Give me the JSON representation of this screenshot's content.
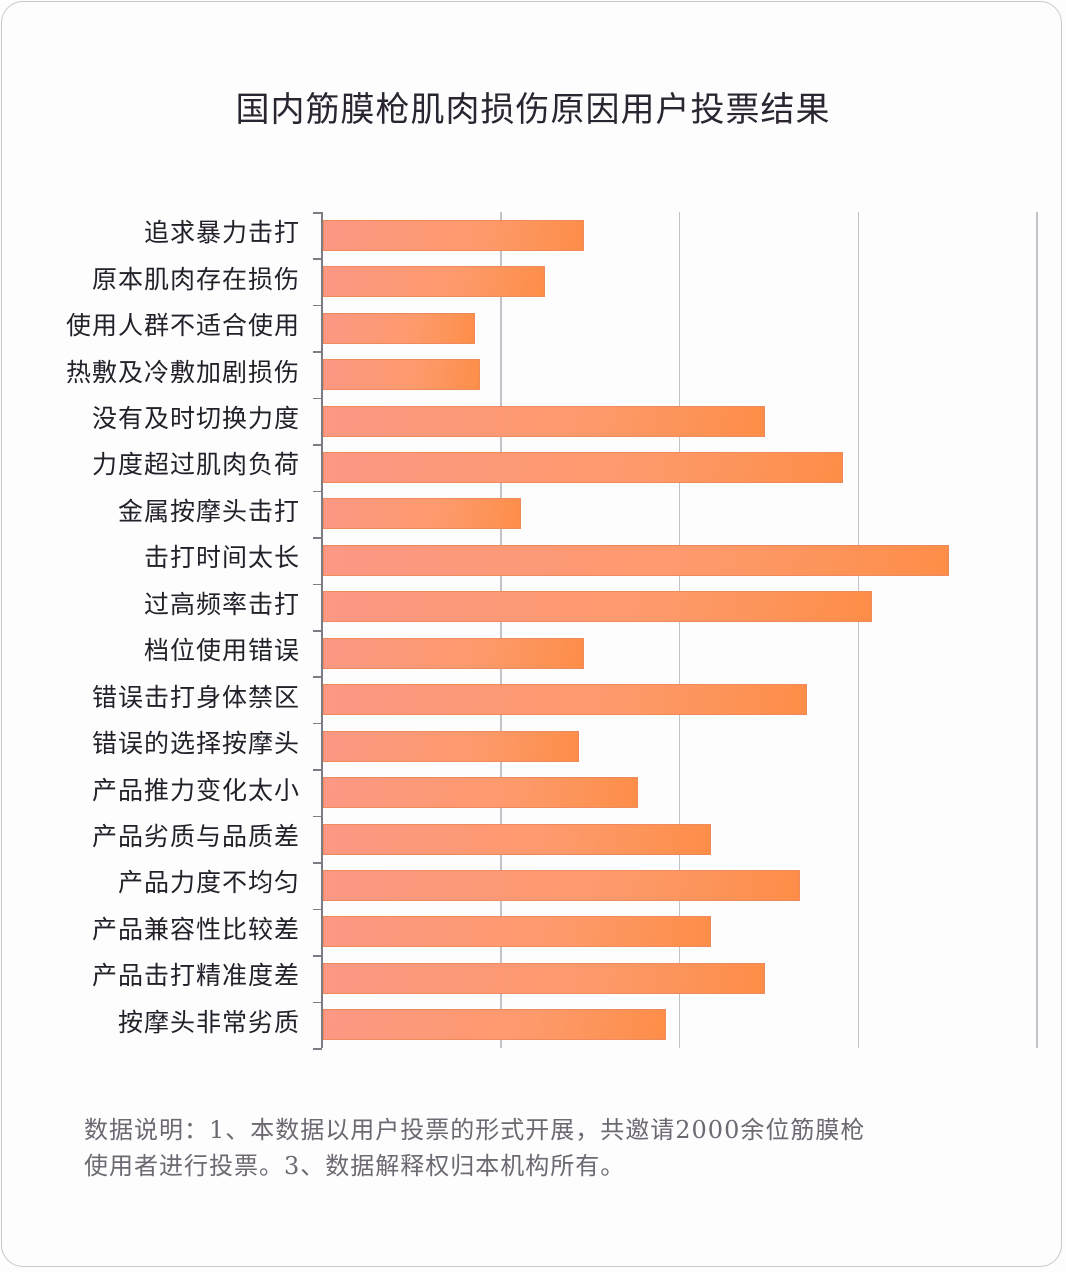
{
  "title": "国内筋膜枪肌肉损伤原因用户投票结果",
  "note": {
    "line1": "数据说明：1、本数据以用户投票的形式开展，共邀请2000余位筋膜枪",
    "line2": "使用者进行投票。3、数据解释权归本机构所有。"
  },
  "colors": {
    "bar_start": "#fc9884",
    "bar_end": "#fd8e48",
    "gridline": "#c2c2c9",
    "text": "#24202a"
  },
  "chart_data": {
    "type": "bar",
    "orientation": "horizontal",
    "title": "国内筋膜枪肌肉损伤原因用户投票结果",
    "xlabel": "",
    "ylabel": "",
    "x_tick_labels": [],
    "xlim": [
      0,
      4
    ],
    "grid": true,
    "legend": null,
    "units_note": "No axis values shown; values are relative lengths in gridline units (4 gridline intervals).",
    "categories": [
      "追求暴力击打",
      "原本肌肉存在损伤",
      "使用人群不适合使用",
      "热敷及冷敷加剧损伤",
      "没有及时切换力度",
      "力度超过肌肉负荷",
      "金属按摩头击打",
      "击打时间太长",
      "过高频率击打",
      "档位使用错误",
      "错误击打身体禁区",
      "错误的选择按摩头",
      "产品推力变化太小",
      "产品劣质与品质差",
      "产品力度不均匀",
      "产品兼容性比较差",
      "产品击打精准度差",
      "按摩头非常劣质"
    ],
    "values": [
      1.46,
      1.24,
      0.85,
      0.88,
      2.47,
      2.91,
      1.11,
      3.5,
      3.07,
      1.46,
      2.71,
      1.43,
      1.76,
      2.17,
      2.67,
      2.17,
      2.47,
      1.92
    ]
  }
}
